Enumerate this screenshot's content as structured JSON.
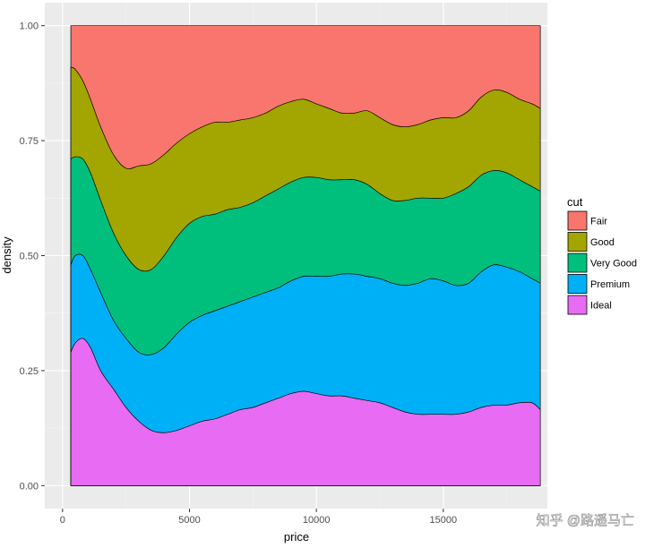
{
  "chart_data": {
    "type": "area",
    "subtype": "stacked-conditional-density",
    "xlabel": "price",
    "ylabel": "density",
    "xlim": [
      -700,
      19100
    ],
    "ylim": [
      -0.05,
      1.05
    ],
    "x_ticks": [
      0,
      5000,
      10000,
      15000
    ],
    "x_tick_labels": [
      "0",
      "5000",
      "10000",
      "15000"
    ],
    "y_ticks": [
      0,
      0.25,
      0.5,
      0.75,
      1
    ],
    "y_tick_labels": [
      "0.00",
      "0.25",
      "0.50",
      "0.75",
      "1.00"
    ],
    "grid": true,
    "background": "#ebebeb",
    "legend": {
      "title": "cut",
      "position": "right"
    },
    "x": [
      326,
      500,
      800,
      1100,
      1500,
      2000,
      2500,
      3000,
      3500,
      4000,
      4500,
      5000,
      5500,
      6000,
      6500,
      7000,
      7500,
      8000,
      8500,
      9000,
      9500,
      10000,
      10500,
      11000,
      11500,
      12000,
      12500,
      13000,
      13500,
      14000,
      14500,
      15000,
      15500,
      16000,
      16500,
      17000,
      17500,
      18000,
      18500,
      18823
    ],
    "series": [
      {
        "name": "Ideal",
        "color": "#e76bf3",
        "values": [
          0.29,
          0.31,
          0.32,
          0.3,
          0.25,
          0.21,
          0.17,
          0.14,
          0.12,
          0.115,
          0.12,
          0.13,
          0.14,
          0.145,
          0.155,
          0.165,
          0.17,
          0.18,
          0.19,
          0.2,
          0.205,
          0.2,
          0.195,
          0.195,
          0.19,
          0.185,
          0.18,
          0.17,
          0.16,
          0.155,
          0.155,
          0.155,
          0.155,
          0.16,
          0.17,
          0.175,
          0.175,
          0.18,
          0.18,
          0.165
        ]
      },
      {
        "name": "Premium",
        "color": "#00b0f6",
        "values": [
          0.48,
          0.5,
          0.5,
          0.47,
          0.42,
          0.36,
          0.32,
          0.29,
          0.285,
          0.3,
          0.33,
          0.355,
          0.37,
          0.38,
          0.39,
          0.4,
          0.41,
          0.42,
          0.43,
          0.445,
          0.455,
          0.455,
          0.455,
          0.46,
          0.46,
          0.455,
          0.45,
          0.44,
          0.435,
          0.44,
          0.45,
          0.445,
          0.435,
          0.44,
          0.465,
          0.48,
          0.475,
          0.465,
          0.45,
          0.44
        ]
      },
      {
        "name": "Very Good",
        "color": "#00bf7d",
        "values": [
          0.71,
          0.715,
          0.71,
          0.68,
          0.62,
          0.55,
          0.5,
          0.47,
          0.47,
          0.5,
          0.54,
          0.57,
          0.585,
          0.59,
          0.6,
          0.605,
          0.615,
          0.63,
          0.645,
          0.66,
          0.67,
          0.67,
          0.665,
          0.665,
          0.665,
          0.655,
          0.635,
          0.62,
          0.62,
          0.625,
          0.625,
          0.625,
          0.635,
          0.65,
          0.675,
          0.685,
          0.68,
          0.665,
          0.65,
          0.64
        ]
      },
      {
        "name": "Good",
        "color": "#a3a500",
        "values": [
          0.91,
          0.905,
          0.88,
          0.84,
          0.78,
          0.72,
          0.69,
          0.695,
          0.7,
          0.72,
          0.745,
          0.765,
          0.78,
          0.79,
          0.79,
          0.795,
          0.8,
          0.81,
          0.825,
          0.835,
          0.84,
          0.83,
          0.82,
          0.81,
          0.81,
          0.815,
          0.8,
          0.785,
          0.78,
          0.785,
          0.795,
          0.8,
          0.8,
          0.815,
          0.845,
          0.86,
          0.855,
          0.84,
          0.83,
          0.82
        ]
      },
      {
        "name": "Fair",
        "color": "#f8766d",
        "values": [
          1,
          1,
          1,
          1,
          1,
          1,
          1,
          1,
          1,
          1,
          1,
          1,
          1,
          1,
          1,
          1,
          1,
          1,
          1,
          1,
          1,
          1,
          1,
          1,
          1,
          1,
          1,
          1,
          1,
          1,
          1,
          1,
          1,
          1,
          1,
          1,
          1,
          1,
          1,
          1
        ]
      }
    ]
  },
  "watermark": "知乎 @路遥马亡"
}
